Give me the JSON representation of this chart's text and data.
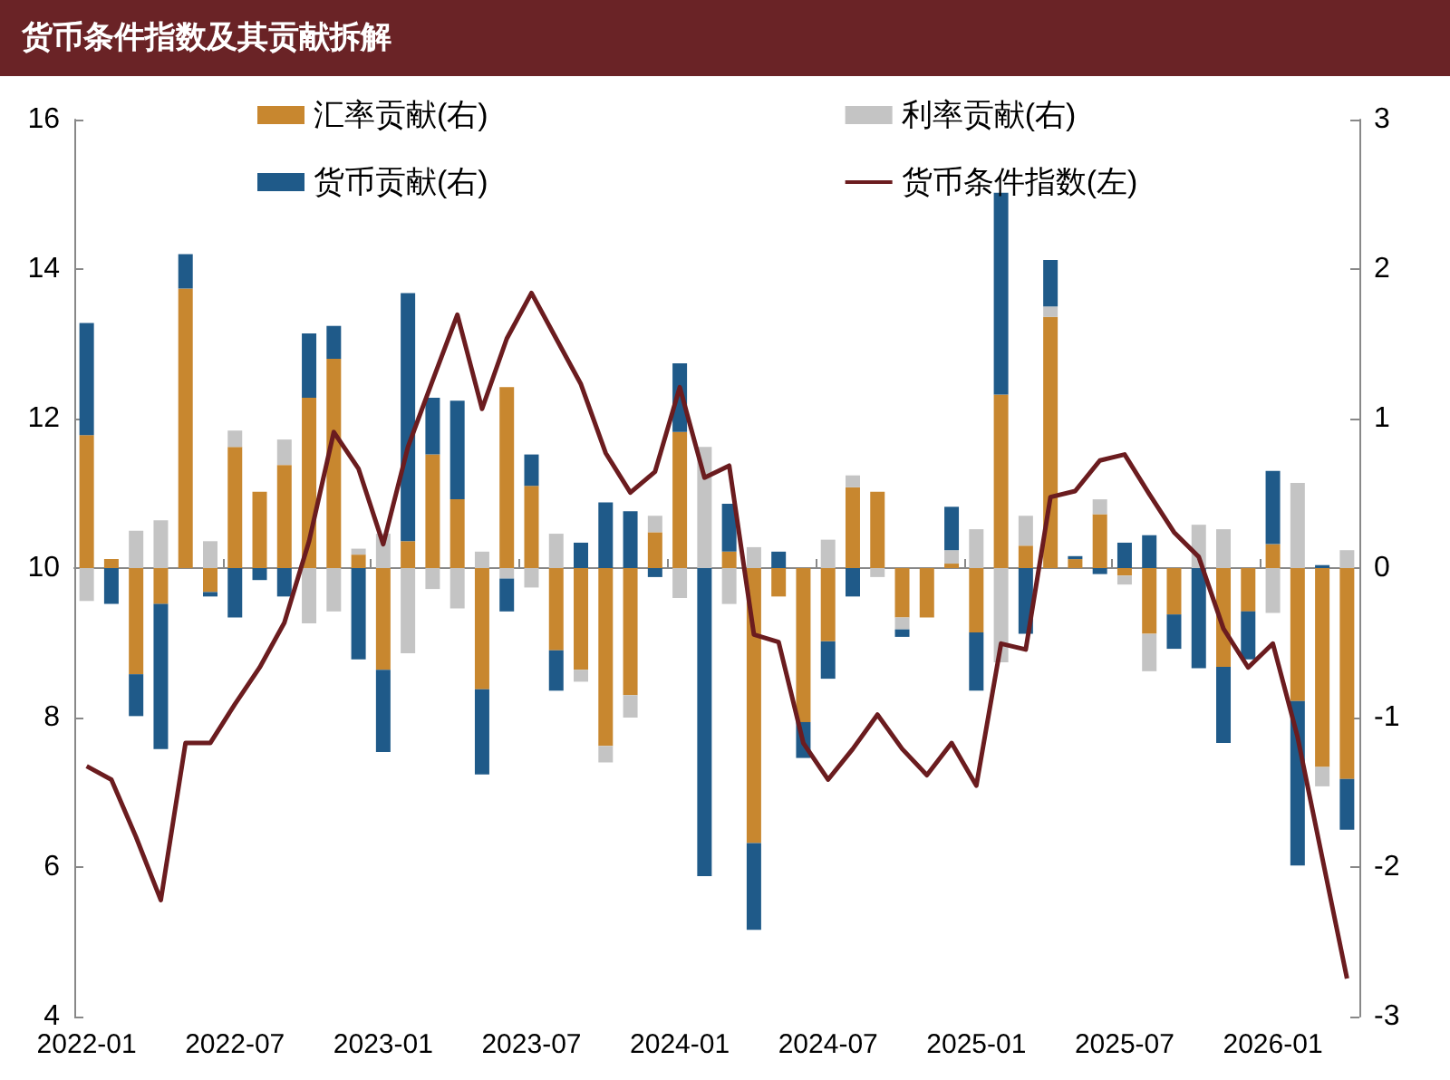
{
  "chart_data": {
    "type": "bar",
    "title": "货币条件指数及其贡献拆解",
    "stacked": true,
    "legend": "top",
    "marker": "none",
    "categories": [
      "2022-01",
      null,
      null,
      null,
      null,
      null,
      "2022-07",
      null,
      null,
      null,
      null,
      null,
      "2023-01",
      null,
      null,
      null,
      null,
      null,
      "2023-07",
      null,
      null,
      null,
      null,
      null,
      "2024-01",
      null,
      null,
      null,
      null,
      null,
      "2024-07",
      null,
      null,
      null,
      null,
      null,
      "2025-01",
      null,
      null,
      null,
      null,
      null,
      "2025-07",
      null,
      null,
      null,
      null,
      null,
      "2026-01",
      null,
      null,
      null
    ],
    "ylim": [
      4,
      16
    ],
    "yticks": [
      4,
      6,
      8,
      10,
      12,
      14,
      16
    ],
    "y2lim": [
      -3,
      3
    ],
    "y2ticks": [
      -3,
      -2,
      -1,
      0,
      1,
      2,
      3
    ],
    "series": [
      {
        "name": "汇率贡献(右)",
        "axis": "y2",
        "color": "#c8872f",
        "values": [
          0.89,
          0.06,
          -0.71,
          -0.24,
          1.87,
          -0.16,
          0.81,
          0.51,
          0.69,
          1.14,
          1.4,
          0.09,
          -0.68,
          0.18,
          0.76,
          0.46,
          -0.81,
          1.21,
          0.55,
          -0.55,
          -0.68,
          -1.19,
          -0.85,
          0.24,
          0.91,
          null,
          0.11,
          -1.84,
          -0.19,
          -1.03,
          -0.49,
          0.54,
          0.51,
          -0.33,
          -0.33,
          0.03,
          -0.43,
          1.16,
          0.15,
          1.68,
          0.06,
          0.36,
          -0.05,
          -0.44,
          -0.31,
          null,
          -0.66,
          -0.29,
          0.16,
          -0.89,
          -1.33,
          -1.41
        ]
      },
      {
        "name": "利率贡献(右)",
        "axis": "y2",
        "color": "#c4c4c4",
        "values": [
          -0.22,
          null,
          0.25,
          0.32,
          null,
          0.18,
          0.11,
          null,
          0.17,
          -0.37,
          -0.29,
          0.04,
          0.23,
          -0.57,
          -0.14,
          -0.27,
          0.11,
          -0.07,
          -0.13,
          0.23,
          -0.08,
          -0.11,
          -0.15,
          0.11,
          -0.2,
          0.81,
          -0.24,
          0.14,
          null,
          null,
          0.19,
          0.08,
          -0.06,
          -0.08,
          null,
          0.09,
          0.26,
          -0.63,
          0.2,
          0.07,
          null,
          0.1,
          -0.06,
          -0.25,
          null,
          0.29,
          0.26,
          null,
          -0.3,
          0.57,
          -0.13,
          0.12
        ]
      },
      {
        "name": "货币贡献(右)",
        "axis": "y2",
        "color": "#1f5a89",
        "values": [
          0.75,
          -0.24,
          -0.28,
          -0.97,
          0.23,
          -0.03,
          -0.33,
          -0.08,
          -0.19,
          0.43,
          0.22,
          -0.61,
          -0.55,
          1.66,
          0.38,
          0.66,
          -0.57,
          -0.22,
          0.21,
          -0.27,
          0.17,
          0.44,
          0.38,
          -0.06,
          0.46,
          -2.06,
          0.32,
          -0.58,
          0.11,
          -0.24,
          -0.25,
          -0.19,
          null,
          -0.05,
          null,
          0.29,
          -0.39,
          1.35,
          -0.44,
          0.31,
          0.02,
          -0.04,
          0.17,
          0.22,
          -0.23,
          -0.67,
          -0.51,
          -0.32,
          0.49,
          -1.1,
          0.02,
          -0.34
        ]
      },
      {
        "name": "货币条件指数(左)",
        "type": "line",
        "color": "#6b1c1f",
        "values": [
          7.35,
          7.17,
          6.4,
          5.56,
          7.66,
          7.66,
          8.18,
          8.67,
          9.27,
          10.36,
          11.82,
          11.33,
          10.32,
          11.62,
          12.51,
          13.39,
          12.13,
          13.07,
          13.68,
          13.07,
          12.46,
          11.54,
          11.01,
          11.29,
          12.42,
          11.21,
          11.37,
          9.11,
          9.01,
          7.66,
          7.17,
          7.58,
          8.04,
          7.58,
          7.23,
          7.66,
          7.09,
          8.99,
          8.91,
          10.95,
          11.03,
          11.44,
          11.52,
          10.99,
          10.48,
          10.15,
          9.19,
          8.67,
          8.99,
          7.74,
          6.12,
          4.51
        ]
      }
    ]
  }
}
